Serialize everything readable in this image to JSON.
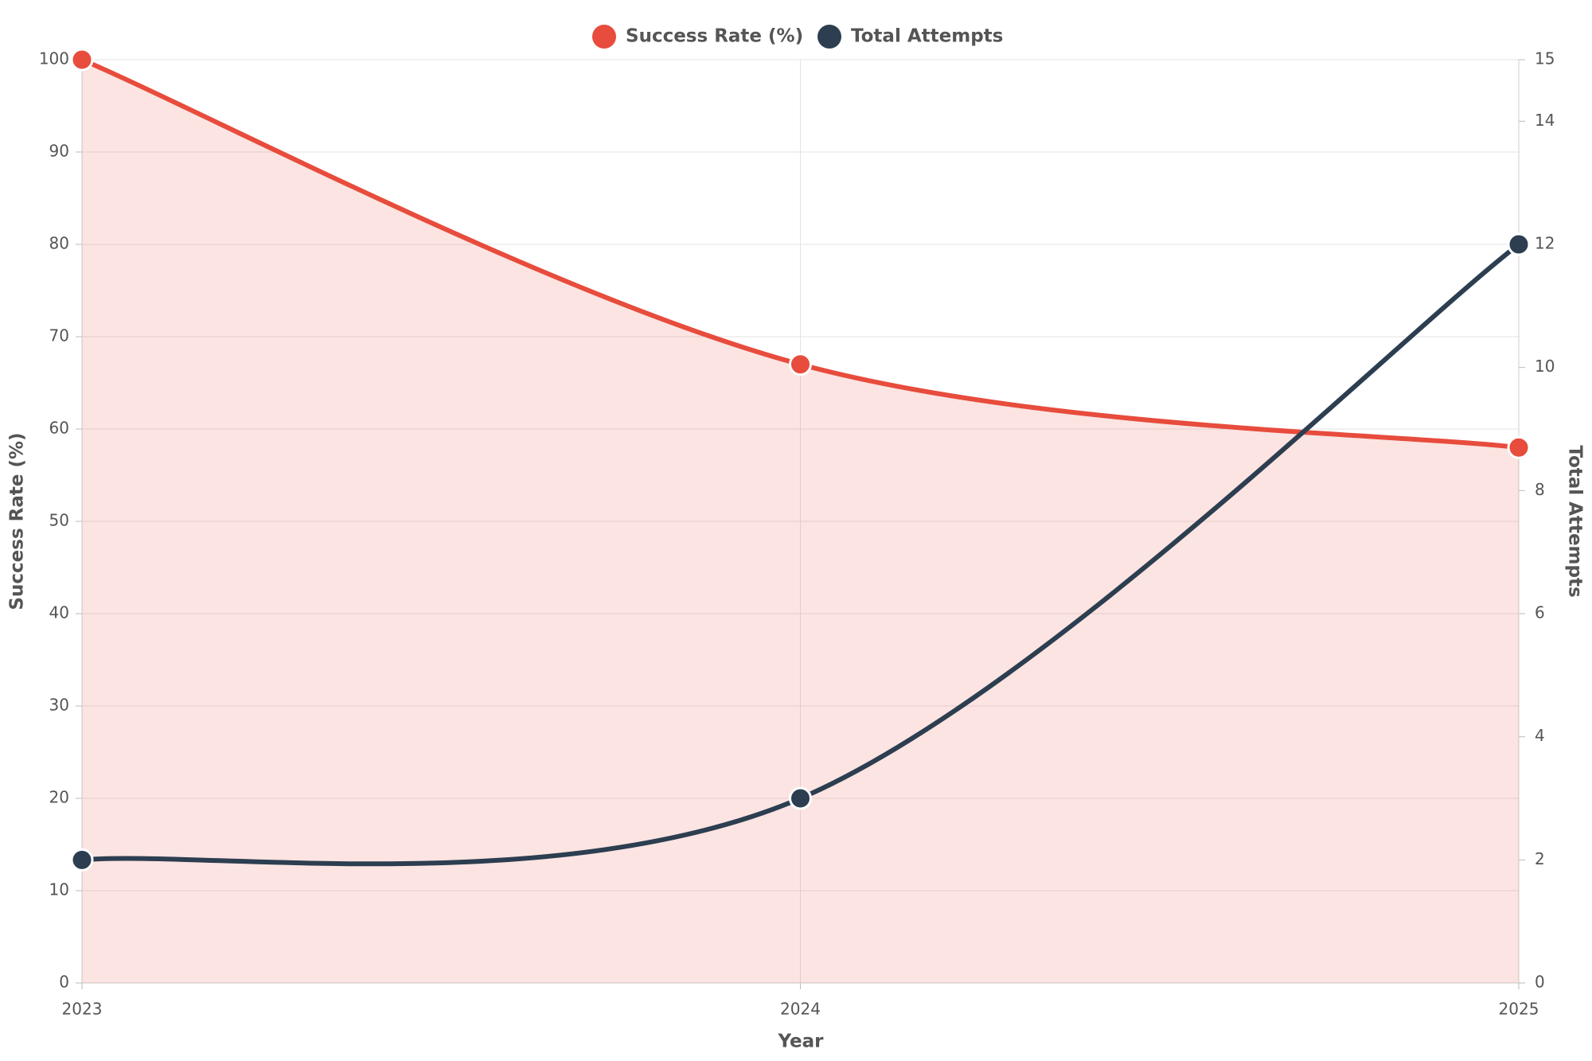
{
  "chart_data": {
    "type": "line",
    "x_label": "Year",
    "y_label": "Success Rate (%)",
    "y2_label": "Total Attempts",
    "categories": [
      "2023",
      "2024",
      "2025"
    ],
    "series": [
      {
        "name": "Success Rate (%)",
        "color": "#e74c3c",
        "values": [
          100,
          67,
          58
        ],
        "area": true
      },
      {
        "name": "Total Attempts",
        "color": "#2c3e50",
        "values": [
          2,
          3,
          12
        ],
        "axis": "y2"
      }
    ],
    "ylim": [
      0,
      100
    ],
    "yticks": [
      0,
      10,
      20,
      30,
      40,
      50,
      60,
      70,
      80,
      90,
      100
    ],
    "y2lim": [
      0,
      15
    ],
    "y2ticks": [
      0,
      2,
      4,
      6,
      8,
      10,
      12,
      14,
      15
    ],
    "grid": true,
    "legend": "top"
  }
}
